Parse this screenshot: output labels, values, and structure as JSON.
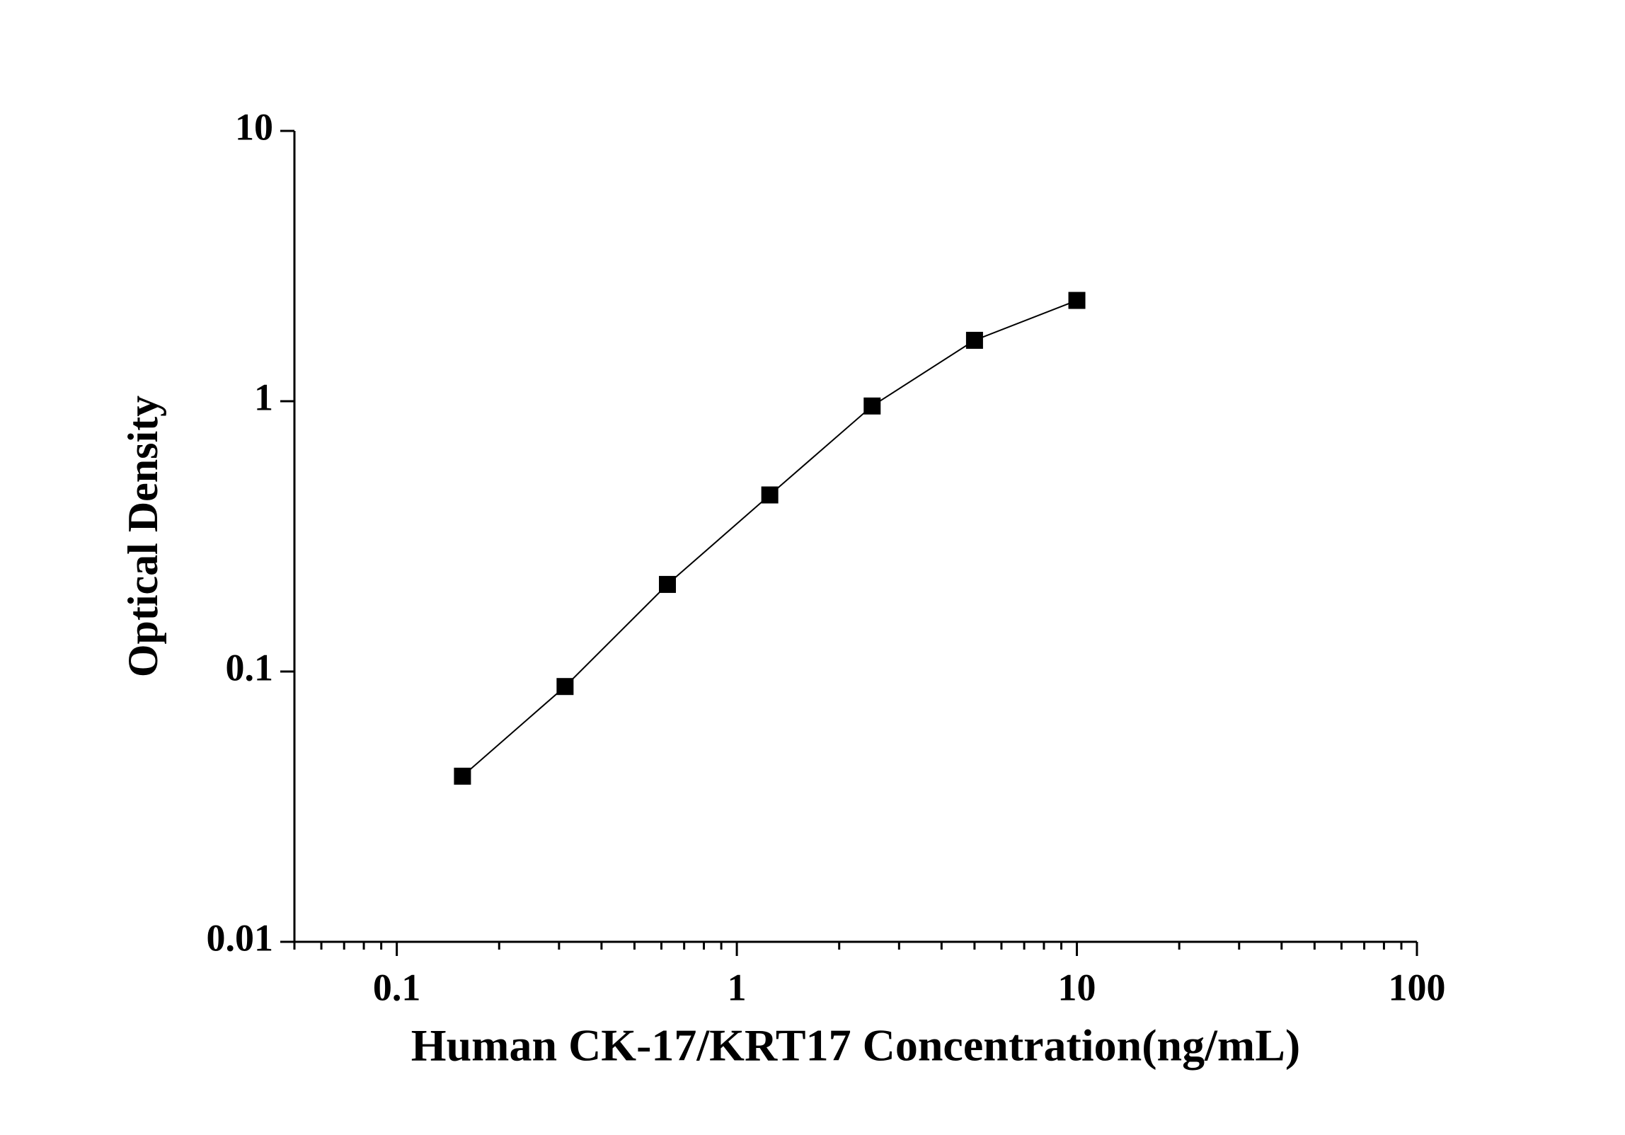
{
  "chart_data": {
    "type": "line",
    "x_label": "Human CK-17/KRT17 Concentration(ng/mL)",
    "y_label": "Optical Density",
    "x": [
      0.156,
      0.3125,
      0.625,
      1.25,
      2.5,
      5,
      10
    ],
    "values": [
      0.041,
      0.088,
      0.21,
      0.45,
      0.96,
      1.68,
      2.36
    ],
    "color": "#000000",
    "marker": "square",
    "xscale": "log",
    "yscale": "log",
    "xlim": [
      0.05,
      100
    ],
    "ylim": [
      0.01,
      10
    ],
    "xticks": [
      0.1,
      1,
      10,
      100
    ],
    "yticks": [
      0.01,
      0.1,
      1,
      10
    ],
    "x_minor_ticks": true,
    "grid": false
  }
}
